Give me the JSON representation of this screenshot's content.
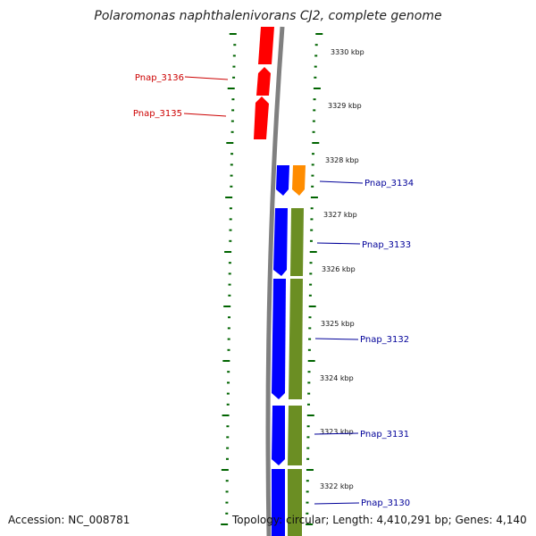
{
  "title": "Polaromonas naphthalenivorans CJ2, complete genome",
  "accession": "Accession: NC_008781",
  "topology": "Topology: circular; Length: 4,410,291 bp; Genes: 4,140",
  "colors": {
    "reverse_genes": "#ff0000",
    "forward_genes": "#0000ff",
    "cds_track": "#6b8e23",
    "orange_feature": "#ff8c00",
    "backbone": "#808080",
    "ticks": "#006400",
    "label_reverse": "#cc0000",
    "label_forward": "#000099"
  },
  "scale_labels": [
    "3330 kbp",
    "3329 kbp",
    "3328 kbp",
    "3327 kbp",
    "3326 kbp",
    "3325 kbp",
    "3324 kbp",
    "3323 kbp",
    "3322 kbp"
  ],
  "gene_labels_left": [
    "Pnap_3136",
    "Pnap_3135"
  ],
  "gene_labels_right": [
    "Pnap_3134",
    "Pnap_3133",
    "Pnap_3132",
    "Pnap_3131",
    "Pnap_3130"
  ]
}
